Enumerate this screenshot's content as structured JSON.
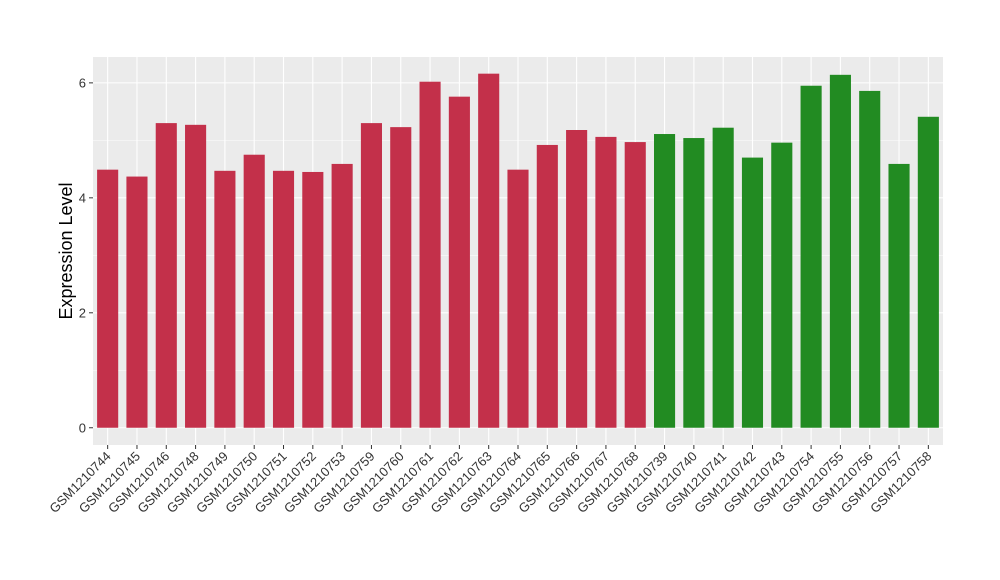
{
  "chart_data": {
    "type": "bar",
    "title": "",
    "xlabel": "",
    "ylabel": "Expression Level",
    "ylim": [
      -0.3,
      6.45
    ],
    "yticks": [
      0,
      2,
      4,
      6
    ],
    "ytick_labels": [
      "0",
      "2",
      "4",
      "6"
    ],
    "grid": true,
    "legend": "none",
    "colors": {
      "group1": "#C3304A",
      "group2": "#228B22",
      "panel": "#EBEBEB",
      "grid": "#FFFFFF"
    },
    "categories": [
      "GSM1210744",
      "GSM1210745",
      "GSM1210746",
      "GSM1210748",
      "GSM1210749",
      "GSM1210750",
      "GSM1210751",
      "GSM1210752",
      "GSM1210753",
      "GSM1210759",
      "GSM1210760",
      "GSM1210761",
      "GSM1210762",
      "GSM1210763",
      "GSM1210764",
      "GSM1210765",
      "GSM1210766",
      "GSM1210767",
      "GSM1210768",
      "GSM1210739",
      "GSM1210740",
      "GSM1210741",
      "GSM1210742",
      "GSM1210743",
      "GSM1210754",
      "GSM1210755",
      "GSM1210756",
      "GSM1210757",
      "GSM1210758"
    ],
    "values": [
      4.49,
      4.37,
      5.3,
      5.27,
      4.47,
      4.75,
      4.47,
      4.45,
      4.59,
      5.3,
      5.23,
      6.02,
      5.76,
      6.16,
      4.49,
      4.92,
      5.18,
      5.06,
      4.97,
      5.11,
      5.04,
      5.22,
      4.7,
      4.96,
      5.95,
      6.14,
      5.86,
      4.59,
      5.41
    ],
    "groups": [
      "group1",
      "group1",
      "group1",
      "group1",
      "group1",
      "group1",
      "group1",
      "group1",
      "group1",
      "group1",
      "group1",
      "group1",
      "group1",
      "group1",
      "group1",
      "group1",
      "group1",
      "group1",
      "group1",
      "group2",
      "group2",
      "group2",
      "group2",
      "group2",
      "group2",
      "group2",
      "group2",
      "group2",
      "group2"
    ]
  }
}
